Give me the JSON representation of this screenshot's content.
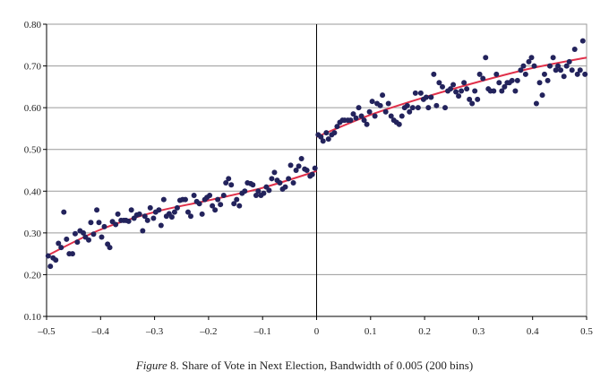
{
  "caption": {
    "label": "Figure",
    "text": "8. Share of Vote in Next Election, Bandwidth of 0.005 (200 bins)"
  },
  "chart_data": {
    "type": "scatter",
    "xlim": [
      -0.5,
      0.5
    ],
    "ylim": [
      0.1,
      0.8
    ],
    "x_ticks": [
      -0.5,
      -0.4,
      -0.3,
      -0.2,
      -0.1,
      0,
      0.1,
      0.2,
      0.3,
      0.4,
      0.5
    ],
    "x_tick_labels": [
      "–0.5",
      "–0.4",
      "–0.3",
      "–0.2",
      "–0.1",
      "0",
      "0.1",
      "0.2",
      "0.3",
      "0.4",
      "0.5"
    ],
    "y_ticks": [
      0.1,
      0.2,
      0.3,
      0.4,
      0.5,
      0.6,
      0.7,
      0.8
    ],
    "y_tick_labels": [
      "0.10",
      "0.20",
      "0.30",
      "0.40",
      "0.50",
      "0.60",
      "0.70",
      "0.80"
    ],
    "grid": "horizontal",
    "cutoff_x": 0,
    "colors": {
      "points": "#23235c",
      "fit": "#e0304a",
      "grid": "#9a9a9a",
      "axis": "#000000"
    },
    "fit_left": {
      "x": [
        -0.5,
        -0.4,
        -0.3,
        -0.2,
        -0.1,
        0
      ],
      "y": [
        0.245,
        0.308,
        0.35,
        0.378,
        0.408,
        0.448
      ]
    },
    "fit_right": {
      "x": [
        0,
        0.1,
        0.2,
        0.3,
        0.4,
        0.5
      ],
      "y": [
        0.53,
        0.583,
        0.625,
        0.662,
        0.695,
        0.72
      ]
    },
    "series": [
      {
        "x": [
          -0.497,
          -0.493,
          -0.488,
          -0.483,
          -0.478,
          -0.473,
          -0.468,
          -0.463,
          -0.458,
          -0.452,
          -0.447,
          -0.443,
          -0.438,
          -0.432,
          -0.428,
          -0.422,
          -0.418,
          -0.413,
          -0.407,
          -0.403,
          -0.398,
          -0.393,
          -0.387,
          -0.383,
          -0.378,
          -0.372,
          -0.368,
          -0.362,
          -0.357,
          -0.353,
          -0.348,
          -0.343,
          -0.338,
          -0.333,
          -0.328,
          -0.322,
          -0.318,
          -0.313,
          -0.308,
          -0.302,
          -0.298,
          -0.292,
          -0.288,
          -0.283,
          -0.278,
          -0.273,
          -0.268,
          -0.263,
          -0.258,
          -0.253,
          -0.248,
          -0.243,
          -0.238,
          -0.233,
          -0.227,
          -0.222,
          -0.217,
          -0.212,
          -0.207,
          -0.203,
          -0.198,
          -0.193,
          -0.188,
          -0.183,
          -0.178,
          -0.172,
          -0.168,
          -0.163,
          -0.158,
          -0.153,
          -0.148,
          -0.143,
          -0.138,
          -0.133,
          -0.128,
          -0.122,
          -0.118,
          -0.112,
          -0.108,
          -0.103,
          -0.098,
          -0.093,
          -0.088,
          -0.083,
          -0.078,
          -0.073,
          -0.068,
          -0.063,
          -0.058,
          -0.052,
          -0.048,
          -0.043,
          -0.038,
          -0.033,
          -0.028,
          -0.022,
          -0.018,
          -0.012,
          -0.008,
          -0.003
        ],
        "y": [
          0.245,
          0.22,
          0.24,
          0.235,
          0.275,
          0.265,
          0.35,
          0.285,
          0.25,
          0.25,
          0.298,
          0.278,
          0.305,
          0.3,
          0.29,
          0.283,
          0.325,
          0.297,
          0.355,
          0.325,
          0.29,
          0.315,
          0.273,
          0.265,
          0.327,
          0.32,
          0.345,
          0.33,
          0.33,
          0.33,
          0.328,
          0.355,
          0.335,
          0.343,
          0.345,
          0.305,
          0.34,
          0.33,
          0.36,
          0.335,
          0.35,
          0.355,
          0.318,
          0.38,
          0.34,
          0.346,
          0.338,
          0.35,
          0.36,
          0.378,
          0.38,
          0.38,
          0.35,
          0.34,
          0.39,
          0.375,
          0.37,
          0.345,
          0.38,
          0.385,
          0.39,
          0.365,
          0.355,
          0.38,
          0.368,
          0.39,
          0.42,
          0.43,
          0.415,
          0.37,
          0.38,
          0.365,
          0.395,
          0.4,
          0.42,
          0.418,
          0.415,
          0.39,
          0.4,
          0.39,
          0.395,
          0.41,
          0.402,
          0.43,
          0.445,
          0.426,
          0.42,
          0.405,
          0.41,
          0.43,
          0.462,
          0.42,
          0.45,
          0.46,
          0.478,
          0.453,
          0.45,
          0.436,
          0.44,
          0.455
        ]
      },
      {
        "x": [
          0.003,
          0.008,
          0.012,
          0.018,
          0.022,
          0.028,
          0.033,
          0.038,
          0.043,
          0.048,
          0.052,
          0.058,
          0.063,
          0.068,
          0.073,
          0.078,
          0.083,
          0.088,
          0.093,
          0.098,
          0.103,
          0.108,
          0.112,
          0.118,
          0.122,
          0.128,
          0.133,
          0.138,
          0.143,
          0.148,
          0.153,
          0.158,
          0.163,
          0.168,
          0.172,
          0.178,
          0.183,
          0.188,
          0.193,
          0.198,
          0.203,
          0.207,
          0.212,
          0.217,
          0.222,
          0.227,
          0.233,
          0.238,
          0.243,
          0.248,
          0.253,
          0.258,
          0.263,
          0.268,
          0.273,
          0.278,
          0.283,
          0.288,
          0.293,
          0.298,
          0.302,
          0.308,
          0.313,
          0.318,
          0.322,
          0.328,
          0.333,
          0.338,
          0.343,
          0.348,
          0.353,
          0.357,
          0.362,
          0.368,
          0.372,
          0.378,
          0.383,
          0.387,
          0.393,
          0.398,
          0.403,
          0.407,
          0.413,
          0.418,
          0.422,
          0.428,
          0.432,
          0.438,
          0.443,
          0.447,
          0.452,
          0.458,
          0.463,
          0.468,
          0.473,
          0.478,
          0.483,
          0.488,
          0.493,
          0.497
        ],
        "y": [
          0.535,
          0.53,
          0.52,
          0.54,
          0.525,
          0.535,
          0.54,
          0.555,
          0.565,
          0.57,
          0.57,
          0.57,
          0.57,
          0.585,
          0.575,
          0.6,
          0.58,
          0.57,
          0.56,
          0.59,
          0.615,
          0.58,
          0.61,
          0.605,
          0.63,
          0.59,
          0.61,
          0.58,
          0.57,
          0.565,
          0.56,
          0.58,
          0.6,
          0.605,
          0.59,
          0.6,
          0.635,
          0.6,
          0.635,
          0.62,
          0.625,
          0.6,
          0.625,
          0.68,
          0.605,
          0.66,
          0.65,
          0.6,
          0.64,
          0.645,
          0.655,
          0.638,
          0.628,
          0.64,
          0.66,
          0.645,
          0.62,
          0.61,
          0.64,
          0.62,
          0.68,
          0.67,
          0.72,
          0.645,
          0.64,
          0.64,
          0.68,
          0.66,
          0.64,
          0.65,
          0.66,
          0.66,
          0.665,
          0.64,
          0.665,
          0.69,
          0.7,
          0.68,
          0.71,
          0.72,
          0.7,
          0.61,
          0.66,
          0.63,
          0.68,
          0.665,
          0.7,
          0.72,
          0.69,
          0.7,
          0.69,
          0.675,
          0.7,
          0.71,
          0.69,
          0.74,
          0.68,
          0.69,
          0.76,
          0.68
        ]
      }
    ]
  }
}
